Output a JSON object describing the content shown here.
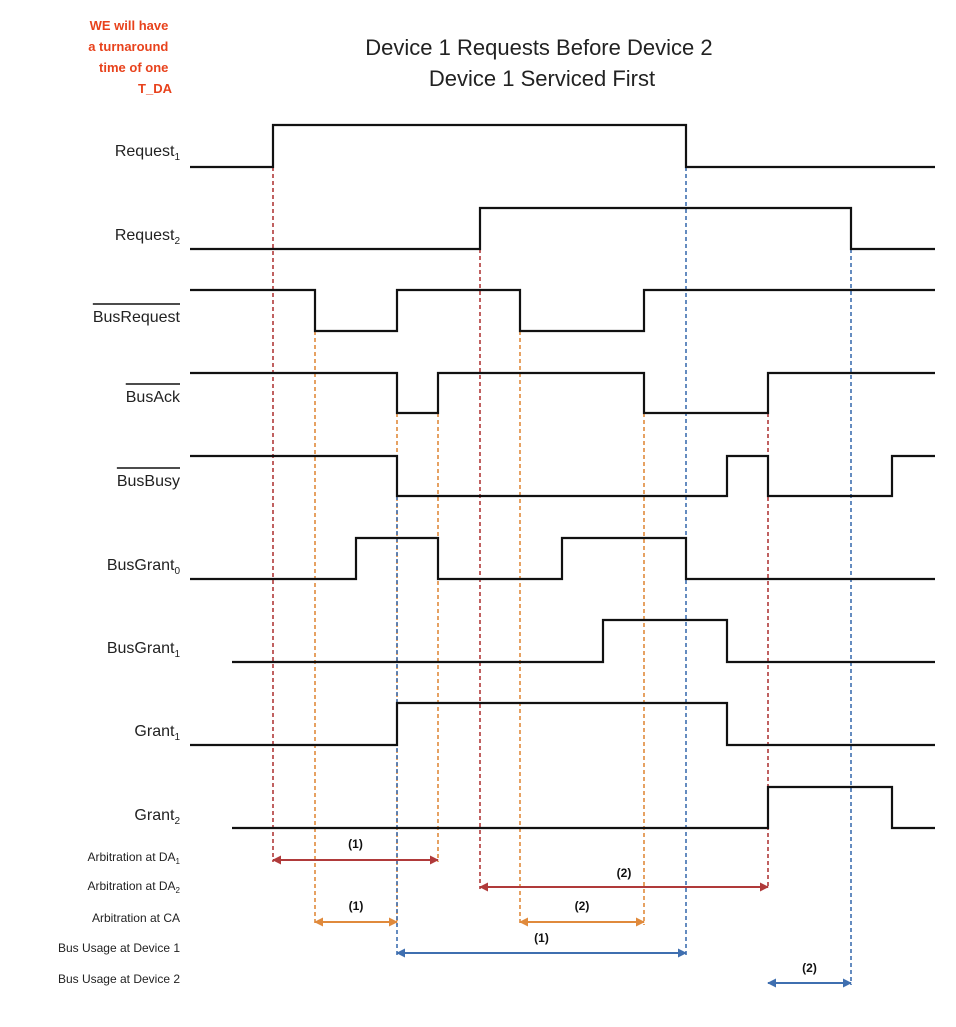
{
  "note_lines": [
    "WE will have",
    "a turnaround",
    "time of one",
    "T_DA"
  ],
  "title_lines": [
    "Device 1 Requests Before Device 2",
    "Device 1 Serviced First"
  ],
  "colors": {
    "red": "#b03a3a",
    "orange": "#e08a3c",
    "blue": "#3f6fb0",
    "note": "#e8421c",
    "wave": "#111111"
  },
  "signals": [
    {
      "name": "Request",
      "sub": "1",
      "overbar": false
    },
    {
      "name": "Request",
      "sub": "2",
      "overbar": false
    },
    {
      "name": "BusRequest",
      "sub": "",
      "overbar": true
    },
    {
      "name": "BusAck",
      "sub": "",
      "overbar": true
    },
    {
      "name": "BusBusy",
      "sub": "",
      "overbar": true
    },
    {
      "name": "BusGrant",
      "sub": "0",
      "overbar": false
    },
    {
      "name": "BusGrant",
      "sub": "1",
      "overbar": false
    },
    {
      "name": "Grant",
      "sub": "1",
      "overbar": false
    },
    {
      "name": "Grant",
      "sub": "2",
      "overbar": false
    }
  ],
  "intervals": [
    {
      "name": "Arbitration at DA",
      "sub": "1",
      "label": "(1)",
      "color": "red"
    },
    {
      "name": "Arbitration at DA",
      "sub": "2",
      "label": "(2)",
      "color": "red"
    },
    {
      "name": "Arbitration at CA",
      "sub": "",
      "label": "(1)",
      "color": "orange"
    },
    {
      "name": "Arbitration at CA",
      "sub": "",
      "label": "(2)",
      "color": "orange"
    },
    {
      "name": "Bus Usage at Device 1",
      "sub": "",
      "label": "(1)",
      "color": "blue"
    },
    {
      "name": "Bus Usage at Device 2",
      "sub": "",
      "label": "(2)",
      "color": "blue"
    }
  ]
}
